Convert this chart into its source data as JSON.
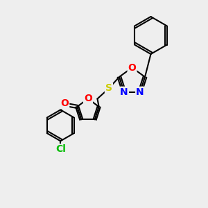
{
  "bg_color": "#eeeeee",
  "bond_color": "#000000",
  "atom_colors": {
    "O": "#ff0000",
    "N": "#0000ff",
    "S": "#cccc00",
    "Cl": "#00bb00",
    "C": "#000000"
  },
  "font_size_atom": 10,
  "lw": 1.5
}
